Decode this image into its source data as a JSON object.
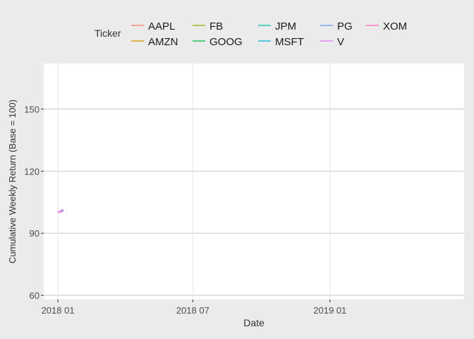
{
  "chart_data": {
    "type": "line",
    "title": "",
    "xlabel": "Date",
    "ylabel": "Cumulative Weekly Return (Base = 100)",
    "x_tick_labels": [
      "2018 01",
      "2018 07",
      "2019 01"
    ],
    "x_tick_dates": [
      "2018-01-01",
      "2018-07-01",
      "2019-01-01"
    ],
    "xlim": [
      "2017-12-13",
      "2019-06-30"
    ],
    "ylim": [
      58,
      172
    ],
    "y_ticks": [
      60,
      90,
      120,
      150
    ],
    "grid": true,
    "background": "#ffffff",
    "legend": {
      "title": "Ticker",
      "placement": "top",
      "rows": [
        [
          "AAPL",
          "FB",
          "JPM",
          "PG",
          "XOM"
        ],
        [
          "AMZN",
          "GOOG",
          "MSFT",
          "V"
        ]
      ]
    },
    "series": [
      {
        "name": "AAPL",
        "color": "#f8766d",
        "x": [
          "2018-01-01",
          "2018-01-08"
        ],
        "y": [
          100,
          101.3
        ]
      },
      {
        "name": "AMZN",
        "color": "#d39200",
        "x": [
          "2018-01-01",
          "2018-01-08"
        ],
        "y": [
          100,
          100.9
        ]
      },
      {
        "name": "FB",
        "color": "#93aa00",
        "x": [
          "2018-01-01",
          "2018-01-08"
        ],
        "y": [
          100,
          101.0
        ]
      },
      {
        "name": "GOOG",
        "color": "#00ba38",
        "x": [
          "2018-01-01",
          "2018-01-08"
        ],
        "y": [
          100,
          101.2
        ]
      },
      {
        "name": "JPM",
        "color": "#00c19f",
        "x": [
          "2018-01-01",
          "2018-01-08"
        ],
        "y": [
          100,
          100.8
        ]
      },
      {
        "name": "MSFT",
        "color": "#00b9e3",
        "x": [
          "2018-01-01",
          "2018-01-08"
        ],
        "y": [
          100,
          101.1
        ]
      },
      {
        "name": "PG",
        "color": "#619cff",
        "x": [
          "2018-01-01",
          "2018-01-08"
        ],
        "y": [
          100,
          101.4
        ]
      },
      {
        "name": "V",
        "color": "#db72fb",
        "x": [
          "2018-01-01",
          "2018-01-08"
        ],
        "y": [
          100,
          101.6
        ]
      },
      {
        "name": "XOM",
        "color": "#ff61c3",
        "x": [
          "2018-01-01",
          "2018-01-08"
        ],
        "y": [
          100,
          100.7
        ]
      }
    ]
  }
}
